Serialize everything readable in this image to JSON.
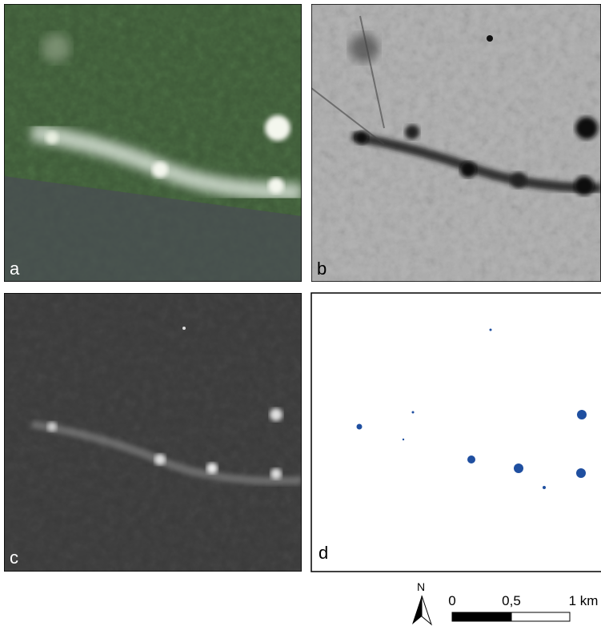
{
  "panels": [
    {
      "label": "a"
    },
    {
      "label": "b"
    },
    {
      "label": "c"
    },
    {
      "label": "d"
    }
  ],
  "north_arrow": {
    "label": "N"
  },
  "scale_bar": {
    "ticks": [
      "0",
      "0,5",
      "1 km"
    ]
  }
}
